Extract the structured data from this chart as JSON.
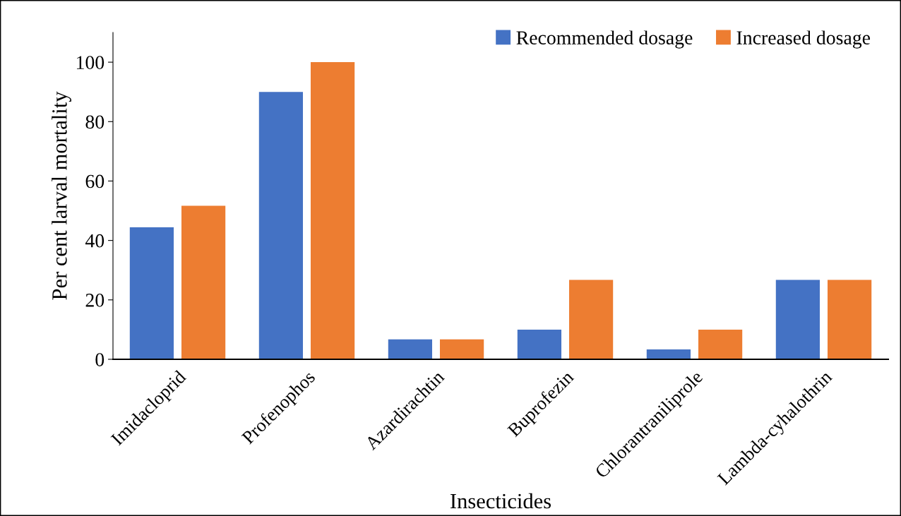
{
  "chart_data": {
    "type": "bar",
    "xlabel": "Insecticides",
    "ylabel": "Per cent larval mortality",
    "categories": [
      "Imidacloprid",
      "Profenophos",
      "Azardirachtin",
      "Buprofezin",
      "Chlorantraniliprole",
      "Lambda-cyhalothrin"
    ],
    "series": [
      {
        "name": "Recommended dosage",
        "color": "#4472c4",
        "values": [
          44.4,
          90,
          6.7,
          10,
          3.3,
          26.7
        ]
      },
      {
        "name": "Increased dosage",
        "color": "#ed7d31",
        "values": [
          51.7,
          100,
          6.7,
          26.7,
          10,
          26.7
        ]
      }
    ],
    "ylim": [
      0,
      110
    ],
    "yticks": [
      0,
      20,
      40,
      60,
      80,
      100
    ],
    "grid": false,
    "legend": "top right"
  }
}
